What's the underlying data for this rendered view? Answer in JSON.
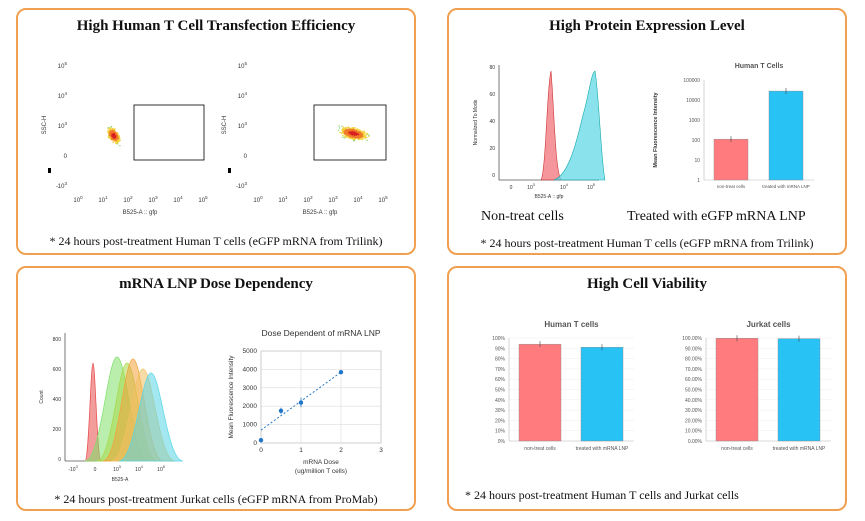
{
  "panel1": {
    "title": "High Human T Cell Transfection Efficiency",
    "note": "* 24 hours post-treatment Human T cells (eGFP mRNA from Trilink)"
  },
  "panel2": {
    "title": "High Protein Expression Level",
    "label_left": "Non-treat cells",
    "label_right": "Treated with eGFP mRNA LNP",
    "note": "* 24 hours post-treatment Human T cells (eGFP mRNA from Trilink)"
  },
  "panel3": {
    "title": "mRNA LNP Dose Dependency",
    "note": "* 24 hours post-treatment Jurkat cells (eGFP mRNA from ProMab)"
  },
  "panel4": {
    "title": "High Cell Viability",
    "note": "* 24 hours post-treatment Human T cells and Jurkat cells"
  },
  "colors": {
    "border": "#f0a050",
    "bar_control": "#ff7b7e",
    "bar_treated": "#29c2f5",
    "hist_red": "#f06a70",
    "hist_cyan": "#58d6e6",
    "scatter_blue": "#2a4fd6",
    "line_blue": "#2176c8"
  },
  "chart_data": [
    {
      "type": "scatter",
      "name": "flow-control",
      "xlabel": "B525-A :: gfp",
      "ylabel": "SSC-H",
      "x_ticks": [
        "10^0",
        "10^1",
        "10^2",
        "10^3",
        "10^4",
        "10^5"
      ],
      "y_ticks": [
        "10^5",
        "10^4",
        "10^3",
        "0",
        "-10^3"
      ],
      "log_scale": true
    },
    {
      "type": "scatter",
      "name": "flow-treated",
      "xlabel": "B525-A :: gfp",
      "ylabel": "SSC-H",
      "x_ticks": [
        "10^0",
        "10^1",
        "10^2",
        "10^3",
        "10^4",
        "10^5"
      ],
      "y_ticks": [
        "10^5",
        "10^4",
        "10^3",
        "0",
        "-10^3"
      ],
      "log_scale": true
    },
    {
      "type": "area",
      "name": "gfp-histogram-tcells",
      "xlabel": "B525-A :: gfp",
      "ylabel": "Normalized To Mode",
      "y_ticks": [
        "80",
        "60",
        "40",
        "20",
        "0"
      ],
      "x_ticks": [
        "0",
        "10^3",
        "10^4",
        "10^5"
      ]
    },
    {
      "type": "bar",
      "name": "mfi-tcells",
      "title": "Human T Cells",
      "ylabel": "Mean Fluorescence Intensity",
      "categories": [
        "non-treat cells",
        "treated with mRNA LNP"
      ],
      "values": [
        110,
        28000
      ],
      "y_ticks": [
        "100000",
        "10000",
        "1000",
        "100",
        "10",
        "1"
      ],
      "log_scale": true
    },
    {
      "type": "area",
      "name": "gfp-histogram-jurkat",
      "xlabel": "B525-A",
      "ylabel": "Count",
      "y_ticks": [
        "800",
        "600",
        "400",
        "200",
        "0"
      ],
      "x_ticks": [
        "-10^3",
        "0",
        "10^3",
        "10^4",
        "10^5"
      ]
    },
    {
      "type": "line",
      "name": "dose-dependency",
      "title": "Dose Dependent of mRNA LNP",
      "xlabel": "mRNA Dose",
      "xlabel2": "(ug/million T cells)",
      "ylabel": "Mean Fluorescence Intensity",
      "x": [
        0,
        0.5,
        1,
        2
      ],
      "y": [
        150,
        1750,
        2200,
        3850
      ],
      "xlim": [
        0,
        3
      ],
      "ylim": [
        0,
        5000
      ],
      "x_ticks": [
        "0",
        "1",
        "2",
        "3"
      ],
      "y_ticks": [
        "5000",
        "4000",
        "3000",
        "2000",
        "1000",
        "0"
      ]
    },
    {
      "type": "bar",
      "name": "viability-tcells",
      "title": "Human T cells",
      "categories": [
        "non-treat cells",
        "treated with mRNA LNP"
      ],
      "values": [
        94,
        91
      ],
      "ylim": [
        0,
        100
      ],
      "y_ticks": [
        "100%",
        "90%",
        "80%",
        "70%",
        "60%",
        "50%",
        "40%",
        "30%",
        "20%",
        "10%",
        "0%"
      ]
    },
    {
      "type": "bar",
      "name": "viability-jurkat",
      "title": "Jurkat cells",
      "categories": [
        "non-treat cells",
        "treated with mRNA LNP"
      ],
      "values": [
        99.8,
        99.4
      ],
      "ylim": [
        0,
        100
      ],
      "y_ticks": [
        "100.00%",
        "90.00%",
        "80.00%",
        "70.00%",
        "60.00%",
        "50.00%",
        "40.00%",
        "30.00%",
        "20.00%",
        "10.00%",
        "0.00%"
      ]
    }
  ]
}
